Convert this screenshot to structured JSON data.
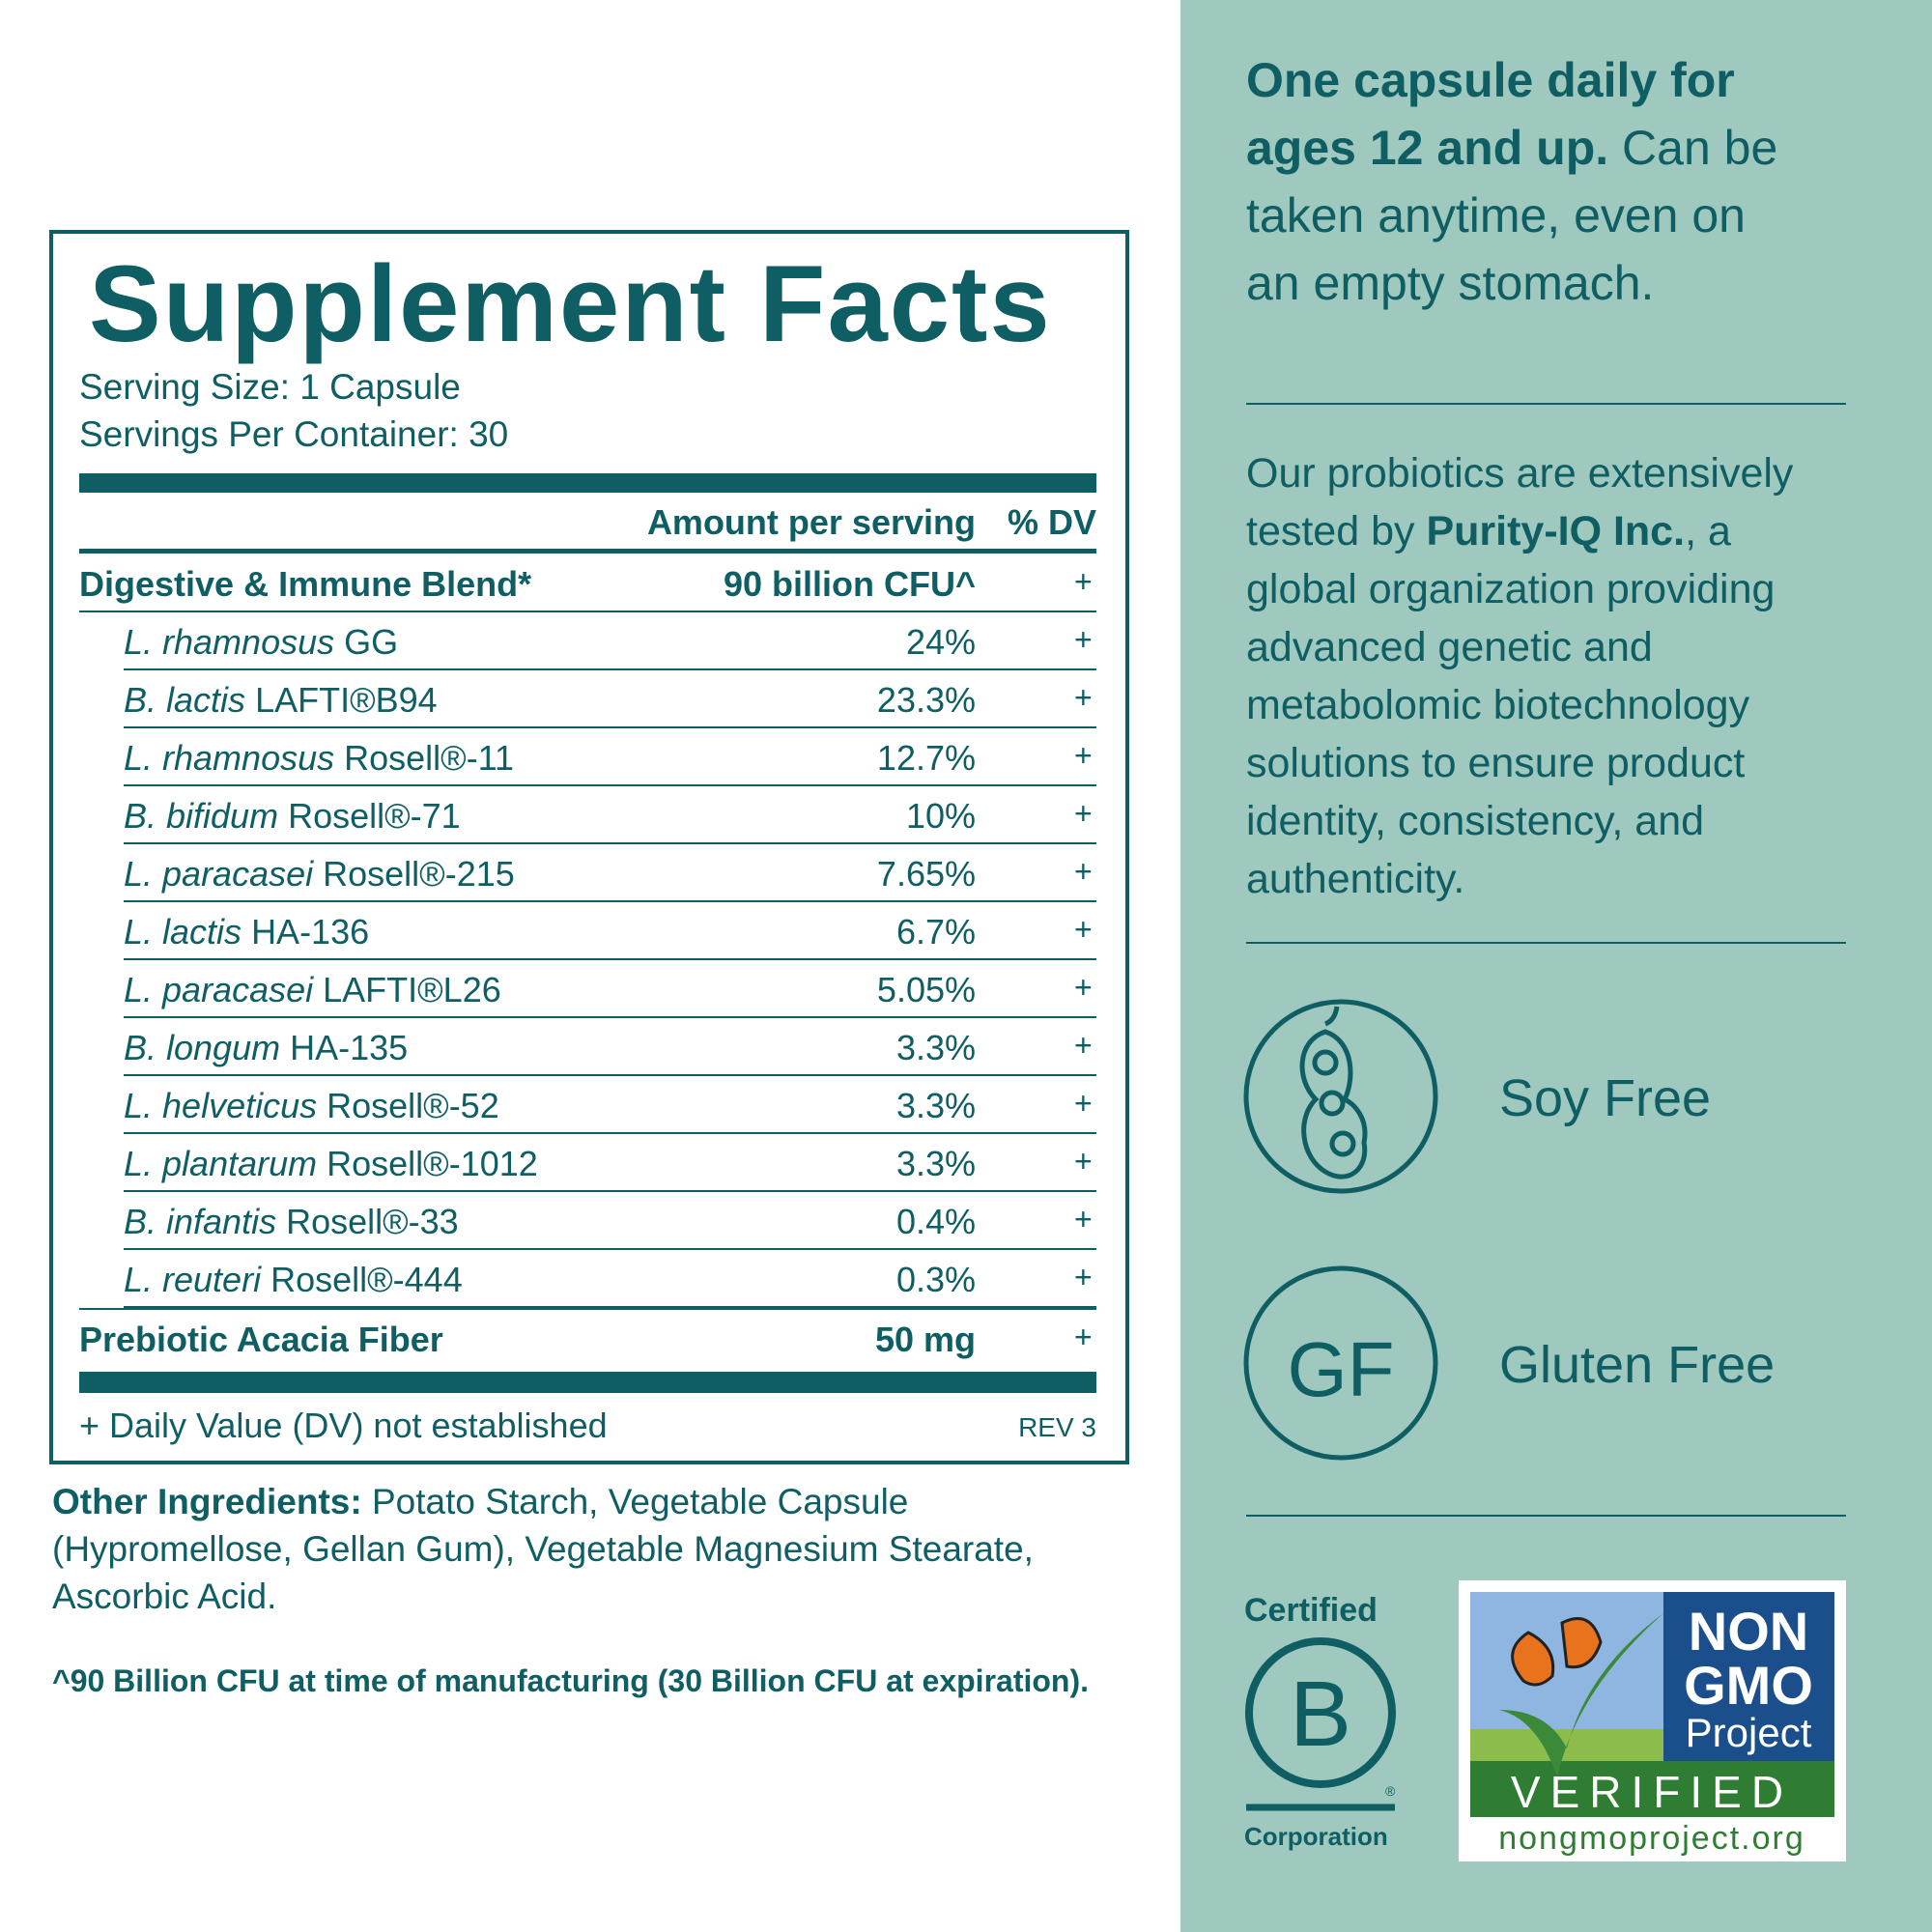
{
  "supplement_facts": {
    "title": "Supplement Facts",
    "serving_size": "Serving Size: 1 Capsule",
    "servings_per_container": "Servings Per Container: 30",
    "header": {
      "amount": "Amount per serving",
      "dv": "% DV"
    },
    "blend": {
      "name": "Digestive & Immune Blend*",
      "amount": "90 billion CFU^",
      "dv": "+"
    },
    "rows": [
      {
        "italic": "L. rhamnosus",
        "name": "GG",
        "amount": "24%",
        "dv": "+"
      },
      {
        "italic": "B. lactis",
        "name": "LAFTI®B94",
        "amount": "23.3%",
        "dv": "+"
      },
      {
        "italic": "L. rhamnosus",
        "name": "Rosell®-11",
        "amount": "12.7%",
        "dv": "+"
      },
      {
        "italic": "B. bifidum",
        "name": "Rosell®-71",
        "amount": "10%",
        "dv": "+"
      },
      {
        "italic": "L. paracasei",
        "name": "Rosell®-215",
        "amount": "7.65%",
        "dv": "+"
      },
      {
        "italic": "L. lactis",
        "name": "HA-136",
        "amount": "6.7%",
        "dv": "+"
      },
      {
        "italic": "L. paracasei",
        "name": "LAFTI®L26",
        "amount": "5.05%",
        "dv": "+"
      },
      {
        "italic": "B. longum",
        "name": "HA-135",
        "amount": "3.3%",
        "dv": "+"
      },
      {
        "italic": "L. helveticus",
        "name": "Rosell®-52",
        "amount": "3.3%",
        "dv": "+"
      },
      {
        "italic": "L. plantarum",
        "name": "Rosell®-1012",
        "amount": "3.3%",
        "dv": "+"
      },
      {
        "italic": "B. infantis",
        "name": "Rosell®-33",
        "amount": "0.4%",
        "dv": "+"
      },
      {
        "italic": "L. reuteri",
        "name": "Rosell®-444",
        "amount": "0.3%",
        "dv": "+"
      }
    ],
    "fiber": {
      "name": "Prebiotic Acacia Fiber",
      "amount": "50 mg",
      "dv": "+"
    },
    "footnote": "+ Daily Value (DV) not established",
    "revision": "REV 3"
  },
  "other_ingredients": {
    "label": "Other Ingredients:",
    "text": "Potato Starch, Vegetable Capsule (Hypromellose, Gellan Gum), Vegetable Magnesium Stearate, Ascorbic Acid."
  },
  "cfu_note": "^90 Billion CFU at time of manufacturing (30 Billion CFU at expiration).",
  "right_panel": {
    "directions_bold": "One capsule daily for ages 12 and up.",
    "directions_rest": "Can be taken anytime, even on an empty stomach.",
    "testing_start": "Our probiotics are extensively tested by",
    "testing_company": "Purity-IQ Inc.",
    "testing_end": ", a global organization providing advanced genetic and metabolomic biotechnology solutions to ensure product identity, consistency, and authenticity.",
    "soy_label": "Soy Free",
    "gf_icon": "GF",
    "gf_label": "Gluten Free",
    "bcorp": {
      "top": "Certified",
      "letter": "B",
      "mark": "®",
      "bottom": "Corporation"
    },
    "nongmo": {
      "line1": "NON",
      "line2": "GMO",
      "line3": "Project",
      "verified": "VERIFIED",
      "url": "nongmoproject.org"
    }
  }
}
